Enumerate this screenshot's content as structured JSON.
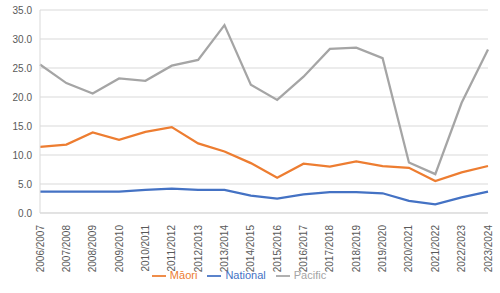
{
  "chart_data": {
    "type": "line",
    "categories": [
      "2006/2007",
      "2007/2008",
      "2008/2009",
      "2009/2010",
      "2010/2011",
      "2011/2012",
      "2012/2013",
      "2013/2014",
      "2014/2015",
      "2015/2016",
      "2016/2017",
      "2017/2018",
      "2018/2019",
      "2019/2020",
      "2020/2021",
      "2021/2022",
      "2022/2023",
      "2023/2024"
    ],
    "series": [
      {
        "name": "National",
        "color": "#4472c4",
        "values": [
          3.7,
          3.7,
          3.7,
          3.7,
          4.0,
          4.2,
          4.0,
          4.0,
          3.0,
          2.5,
          3.2,
          3.6,
          3.6,
          3.4,
          2.1,
          1.5,
          2.7,
          3.7
        ]
      },
      {
        "name": "Māori",
        "color": "#ed7d31",
        "values": [
          11.4,
          11.8,
          13.9,
          12.6,
          14.0,
          14.8,
          12.0,
          10.6,
          8.6,
          6.1,
          8.5,
          8.0,
          8.9,
          8.1,
          7.8,
          5.5,
          7.0,
          8.1
        ]
      },
      {
        "name": "Pacific",
        "color": "#a5a5a5",
        "values": [
          25.6,
          22.4,
          20.6,
          23.2,
          22.8,
          25.4,
          26.4,
          32.4,
          22.1,
          19.5,
          23.5,
          28.3,
          28.5,
          26.7,
          8.7,
          6.7,
          19.0,
          28.2
        ]
      }
    ],
    "ylim": [
      0,
      35
    ],
    "yticks": [
      {
        "value": 0,
        "label": "0.0"
      },
      {
        "value": 5,
        "label": "5.0"
      },
      {
        "value": 10,
        "label": "10.0"
      },
      {
        "value": 15,
        "label": "15.0"
      },
      {
        "value": 20,
        "label": "20.0"
      },
      {
        "value": 25,
        "label": "25.0"
      },
      {
        "value": 30,
        "label": "30.0"
      },
      {
        "value": 35,
        "label": "35.0"
      }
    ],
    "grid": true,
    "legend": "bottom"
  }
}
